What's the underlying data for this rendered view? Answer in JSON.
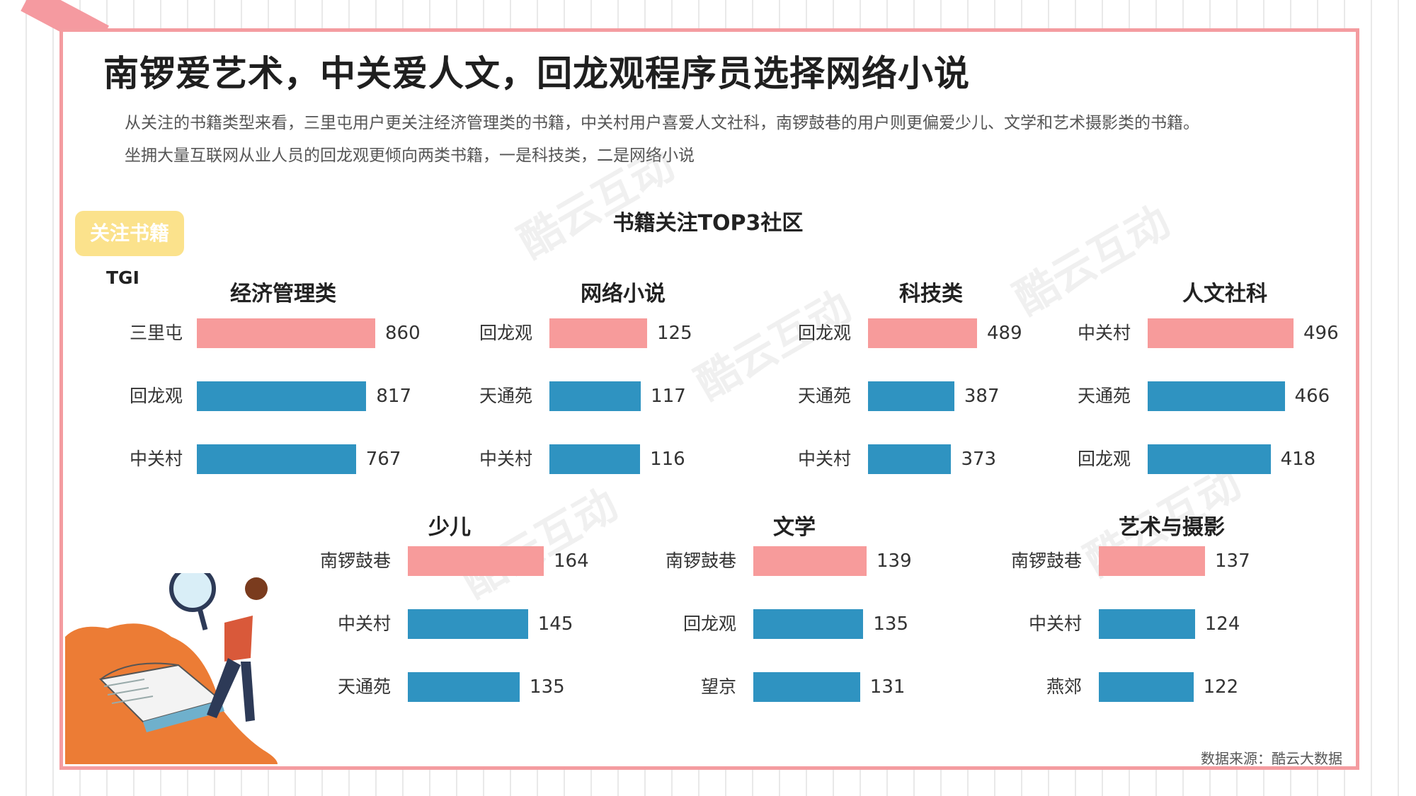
{
  "header": {
    "title": "南锣爱艺术，中关爱人文，回龙观程序员选择网络小说",
    "description_line1": "从关注的书籍类型来看，三里屯用户更关注经济管理类的书籍，中关村用户喜爱人文社科，南锣鼓巷的用户则更偏爱少儿、文学和艺术摄影类的书籍。",
    "description_line2": "坐拥大量互联网从业人员的回龙观更倾向两类书籍，一是科技类，二是网络小说"
  },
  "tag_label": "关注书籍",
  "tgi_label": "TGI",
  "watermark_text": "酷云互动",
  "source": "数据来源：酷云大数据",
  "colors": {
    "top": "#f79b9b",
    "other": "#2f93c1",
    "frame": "#f49ca0"
  },
  "chart_data": {
    "type": "bar",
    "title": "书籍关注TOP3社区",
    "panels": [
      {
        "title": "经济管理类",
        "categories": [
          "三里屯",
          "回龙观",
          "中关村"
        ],
        "values": [
          860,
          817,
          767
        ]
      },
      {
        "title": "网络小说",
        "categories": [
          "回龙观",
          "天通苑",
          "中关村"
        ],
        "values": [
          125,
          117,
          116
        ]
      },
      {
        "title": "科技类",
        "categories": [
          "回龙观",
          "天通苑",
          "中关村"
        ],
        "values": [
          489,
          387,
          373
        ]
      },
      {
        "title": "人文社科",
        "categories": [
          "中关村",
          "天通苑",
          "回龙观"
        ],
        "values": [
          496,
          466,
          418
        ]
      },
      {
        "title": "少儿",
        "categories": [
          "南锣鼓巷",
          "中关村",
          "天通苑"
        ],
        "values": [
          164,
          145,
          135
        ]
      },
      {
        "title": "文学",
        "categories": [
          "南锣鼓巷",
          "回龙观",
          "望京"
        ],
        "values": [
          139,
          135,
          131
        ]
      },
      {
        "title": "艺术与摄影",
        "categories": [
          "南锣鼓巷",
          "中关村",
          "燕郊"
        ],
        "values": [
          137,
          124,
          122
        ]
      }
    ]
  }
}
